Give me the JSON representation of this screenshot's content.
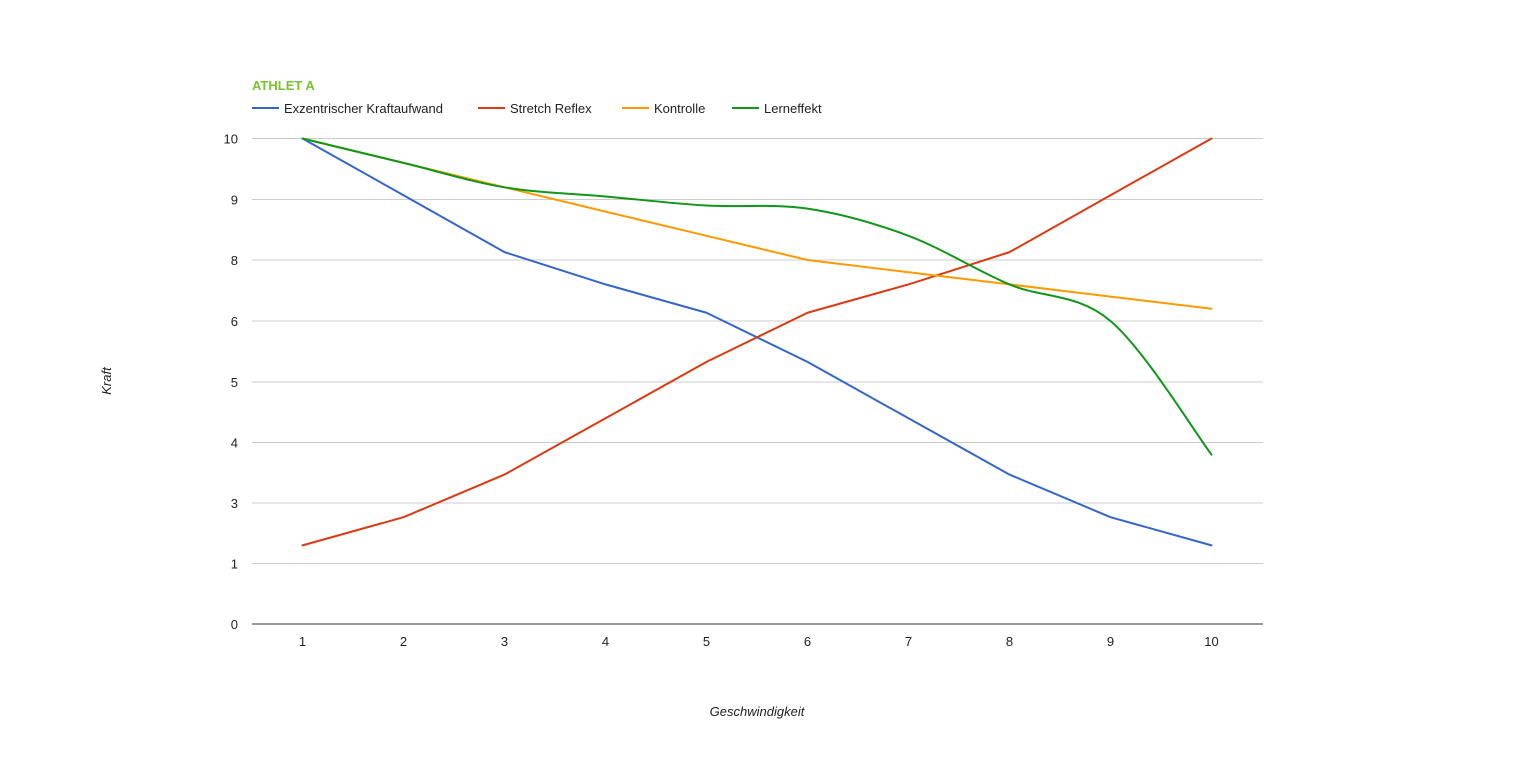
{
  "chart_data": {
    "type": "line",
    "title": "ATHLET A",
    "xlabel": "Geschwindigkeit",
    "ylabel": "Kraft",
    "x": [
      1,
      2,
      3,
      4,
      5,
      6,
      7,
      8,
      9,
      10
    ],
    "x_ticks": [
      "1",
      "2",
      "3",
      "4",
      "5",
      "6",
      "7",
      "8",
      "9",
      "10"
    ],
    "y_ticks": [
      "0",
      "1",
      "3",
      "4",
      "5",
      "6",
      "8",
      "9",
      "10"
    ],
    "legend_position": "top-left",
    "grid": true,
    "series": [
      {
        "name": "Exzentrischer Kraftaufwand",
        "color": "#3366cc",
        "smooth": false,
        "values": [
          10,
          9.07,
          8.13,
          7.2,
          6.27,
          5.33,
          4.4,
          3.47,
          2.53,
          1.6
        ]
      },
      {
        "name": "Stretch Reflex",
        "color": "#dc3912",
        "smooth": false,
        "values": [
          1.6,
          2.53,
          3.47,
          4.4,
          5.33,
          6.27,
          7.2,
          8.13,
          9.07,
          10
        ]
      },
      {
        "name": "Kontrolle",
        "color": "#ff9900",
        "smooth": false,
        "values": [
          10,
          9.6,
          9.2,
          8.8,
          8.4,
          8.0,
          7.6,
          7.2,
          6.8,
          6.4
        ]
      },
      {
        "name": "Lerneffekt",
        "color": "#109618",
        "smooth": true,
        "values": [
          10,
          9.6,
          9.2,
          9.05,
          8.9,
          8.85,
          8.4,
          7.2,
          6.0,
          3.8
        ]
      }
    ]
  },
  "colors": {
    "title": "#77c32a",
    "gridline": "#cccccc",
    "baseline": "#333333",
    "text": "#222222"
  }
}
